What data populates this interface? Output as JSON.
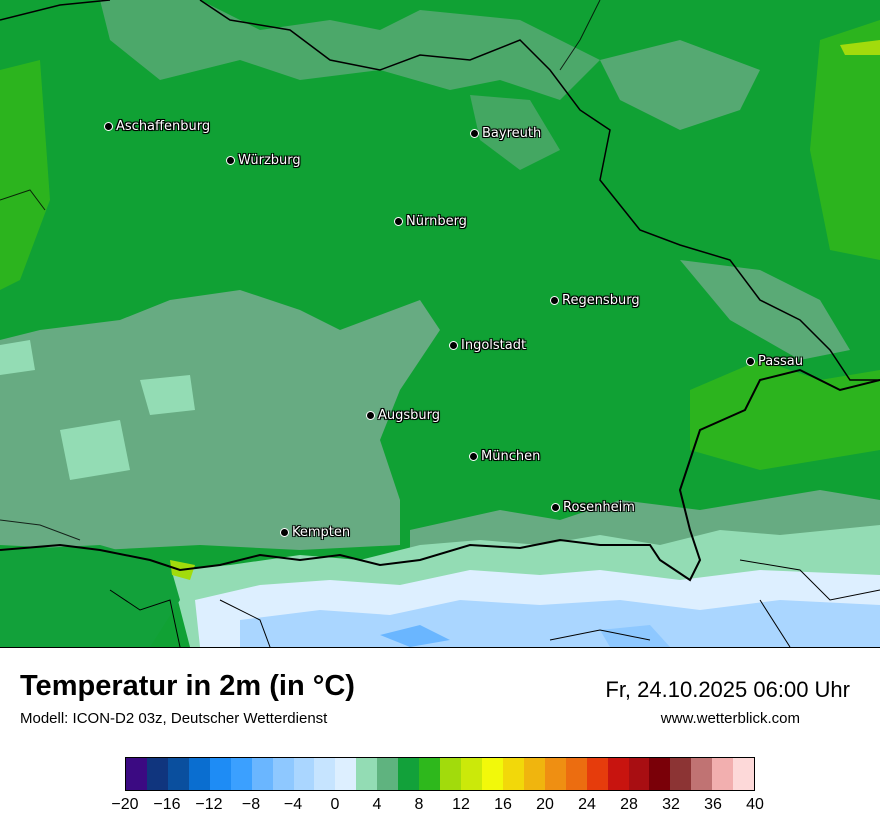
{
  "map": {
    "cities": [
      {
        "name": "Aschaffenburg"
      },
      {
        "name": "Würzburg"
      },
      {
        "name": "Bayreuth"
      },
      {
        "name": "Nürnberg"
      },
      {
        "name": "Regensburg"
      },
      {
        "name": "Ingolstadt"
      },
      {
        "name": "Passau"
      },
      {
        "name": "Augsburg"
      },
      {
        "name": "München"
      },
      {
        "name": "Rosenheim"
      },
      {
        "name": "Kempten"
      }
    ]
  },
  "footer": {
    "title": "Temperatur in 2m (in °C)",
    "model": "Modell: ICON-D2 03z, Deutscher Wetterdienst",
    "datetime": "Fr, 24.10.2025 06:00 Uhr",
    "website": "www.wetterblick.com"
  },
  "legend": {
    "colors": [
      "#3b0a82",
      "#10357e",
      "#0a4f9e",
      "#0a6ed0",
      "#1e8cf5",
      "#3ba0ff",
      "#6ab6ff",
      "#8ec8ff",
      "#aad6ff",
      "#c6e4ff",
      "#ddefff",
      "#93dcb4",
      "#5fb37f",
      "#12a13a",
      "#2eb81c",
      "#a2db0c",
      "#cbe90a",
      "#f2f90a",
      "#f2d80a",
      "#f0b50e",
      "#ef8f12",
      "#ec6d10",
      "#e63c0c",
      "#c8140f",
      "#a80e12",
      "#7a0008",
      "#8c3434",
      "#c07373",
      "#f2afaf",
      "#fdd9d9"
    ],
    "ticks": [
      "−20",
      "−16",
      "−12",
      "−8",
      "−4",
      "0",
      "4",
      "8",
      "12",
      "16",
      "20",
      "24",
      "28",
      "32",
      "36",
      "40"
    ]
  }
}
